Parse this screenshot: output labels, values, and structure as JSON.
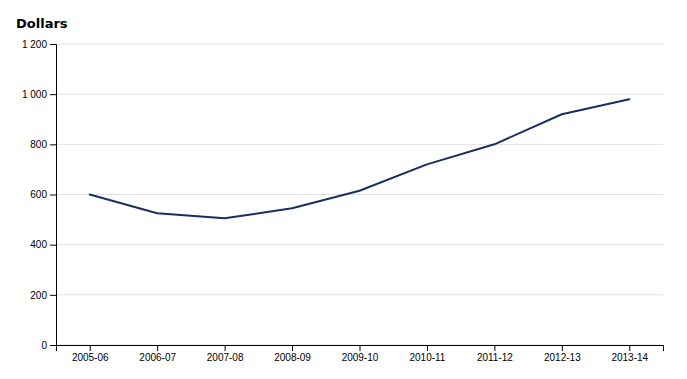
{
  "chart_data": {
    "type": "line",
    "y_label": "Dollars",
    "categories": [
      "2005-06",
      "2006-07",
      "2007-08",
      "2008-09",
      "2009-10",
      "2010-11",
      "2011-12",
      "2012-13",
      "2013-14"
    ],
    "values": [
      600,
      525,
      505,
      545,
      615,
      720,
      800,
      920,
      980
    ],
    "color": "#1a2f5e",
    "ylim": [
      0,
      1200
    ],
    "yticks": [
      0,
      200,
      400,
      600,
      800,
      {
        "value": 1000,
        "label": "1 000"
      },
      {
        "value": 1200,
        "label": "1 200"
      }
    ],
    "grid": true
  }
}
